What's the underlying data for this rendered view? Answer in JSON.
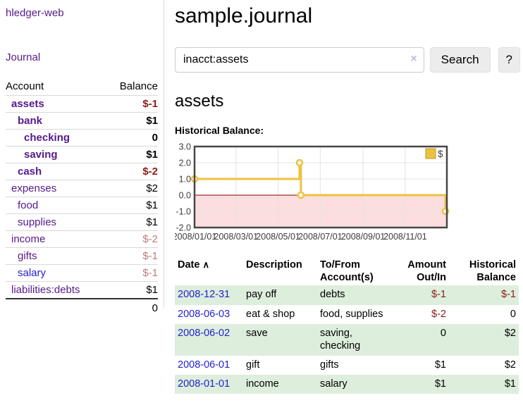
{
  "colors": {
    "purple_link": "#551a8b",
    "blue_link": "#2222cc",
    "negative_strong": "#8e1b1b",
    "negative_soft": "#bd7b7b",
    "row_green": "#ddeedd",
    "chart_line": "#edc240"
  },
  "sidebar": {
    "app_title": "hledger-web",
    "journal_link": "Journal",
    "accounts": {
      "header_account": "Account",
      "header_balance": "Balance",
      "rows": [
        {
          "name": "assets",
          "balance": "$-1"
        },
        {
          "name": "bank",
          "balance": "$1"
        },
        {
          "name": "checking",
          "balance": "0"
        },
        {
          "name": "saving",
          "balance": "$1"
        },
        {
          "name": "cash",
          "balance": "$-2"
        },
        {
          "name": "expenses",
          "balance": "$2"
        },
        {
          "name": "food",
          "balance": "$1"
        },
        {
          "name": "supplies",
          "balance": "$1"
        },
        {
          "name": "income",
          "balance": "$-2"
        },
        {
          "name": "gifts",
          "balance": "$-1"
        },
        {
          "name": "salary",
          "balance": "$-1"
        },
        {
          "name": "liabilities:debts",
          "balance": "$1"
        }
      ],
      "total": "0"
    }
  },
  "main": {
    "title": "sample.journal",
    "search": {
      "value": "inacct:assets",
      "clear": "×",
      "button": "Search",
      "help": "?"
    },
    "account_heading": "assets",
    "chart_title": "Historical Balance:"
  },
  "chart_data": {
    "type": "line",
    "title": "Historical Balance",
    "step": true,
    "series": [
      {
        "name": "$",
        "color": "#edc240",
        "points": [
          {
            "date": "2008-01-01",
            "value": 1
          },
          {
            "date": "2008-06-01",
            "value": 2
          },
          {
            "date": "2008-06-03",
            "value": 0
          },
          {
            "date": "2008-12-31",
            "value": -1
          }
        ]
      }
    ],
    "ylim": [
      -2,
      3
    ],
    "xlim": [
      "2008-01-01",
      "2008-12-31"
    ],
    "y_ticks": [
      3.0,
      2.0,
      1.0,
      0.0,
      -1.0,
      -2.0
    ],
    "x_ticks": [
      "2008/01/01",
      "2008/03/01",
      "2008/05/01",
      "2008/07/01",
      "2008/09/01",
      "2008/11/01"
    ],
    "legend_position": "top-right",
    "grid": true,
    "zero_line_color": "#800000",
    "negative_region_color": "#fcdede"
  },
  "register": {
    "headers": {
      "date": "Date",
      "sort_indicator": "∧",
      "description": "Description",
      "accounts_line1": "To/From",
      "accounts_line2": "Account(s)",
      "amount_line1": "Amount",
      "amount_line2": "Out/In",
      "balance_line1": "Historical",
      "balance_line2": "Balance"
    },
    "rows": [
      {
        "date": "2008-12-31",
        "description": "pay off",
        "accounts": "debts",
        "amount": "$-1",
        "balance": "$-1"
      },
      {
        "date": "2008-06-03",
        "description": "eat & shop",
        "accounts": "food, supplies",
        "amount": "$-2",
        "balance": "0"
      },
      {
        "date": "2008-06-02",
        "description": "save",
        "accounts": "saving, checking",
        "amount": "0",
        "balance": "$2"
      },
      {
        "date": "2008-06-01",
        "description": "gift",
        "accounts": "gifts",
        "amount": "$1",
        "balance": "$2"
      },
      {
        "date": "2008-01-01",
        "description": "income",
        "accounts": "salary",
        "amount": "$1",
        "balance": "$1"
      }
    ]
  }
}
